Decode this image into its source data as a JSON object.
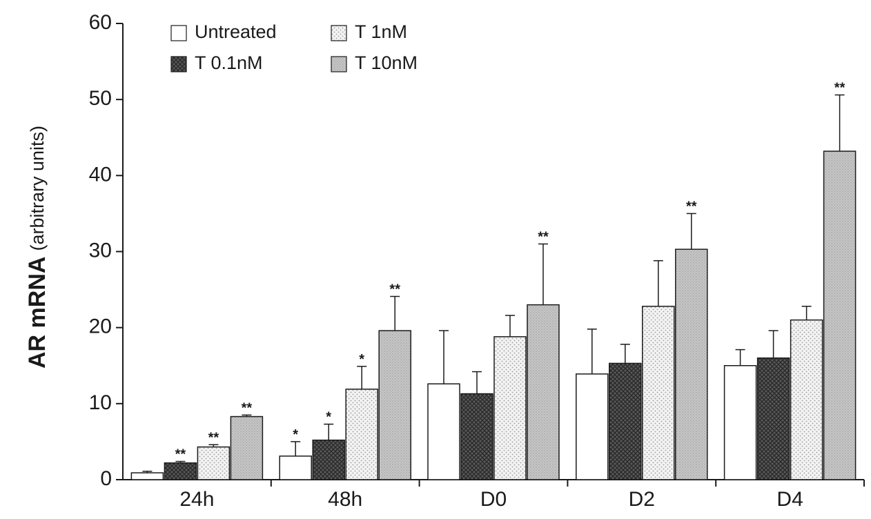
{
  "chart_data": {
    "type": "bar",
    "ylabel_main": "AR mRNA",
    "ylabel_unit": "(arbitrary units)",
    "xlabel": "",
    "ylim": [
      0,
      60
    ],
    "yticks": [
      0,
      10,
      20,
      30,
      40,
      50,
      60
    ],
    "categories": [
      "24h",
      "48h",
      "D0",
      "D2",
      "D4"
    ],
    "legend_position": "top-left",
    "grid": false,
    "series": [
      {
        "name": "Untreated",
        "fill": "white",
        "values": [
          0.9,
          3.1,
          12.6,
          13.9,
          15.0
        ],
        "errors": [
          0.2,
          1.9,
          7.0,
          5.9,
          2.1
        ],
        "significance": [
          "",
          "*",
          "",
          "",
          ""
        ]
      },
      {
        "name": "T 0.1nM",
        "fill": "dark-crosshatch",
        "values": [
          2.2,
          5.2,
          11.3,
          15.3,
          16.0
        ],
        "errors": [
          0.2,
          2.1,
          2.9,
          2.5,
          3.6
        ],
        "significance": [
          "**",
          "*",
          "",
          "",
          ""
        ]
      },
      {
        "name": "T 1nM",
        "fill": "light-dotted",
        "values": [
          4.3,
          11.9,
          18.8,
          22.8,
          21.0
        ],
        "errors": [
          0.3,
          3.0,
          2.8,
          6.0,
          1.8
        ],
        "significance": [
          "**",
          "*",
          "",
          "",
          ""
        ]
      },
      {
        "name": "T 10nM",
        "fill": "gray-dotted",
        "values": [
          8.3,
          19.6,
          23.0,
          30.3,
          43.2
        ],
        "errors": [
          0.2,
          4.5,
          8.0,
          4.7,
          7.4
        ],
        "significance": [
          "**",
          "**",
          "**",
          "**",
          "**"
        ]
      }
    ]
  },
  "colors": {
    "axis": "#1a1a1a",
    "bar_stroke": "#1a1a1a",
    "untreated": "#ffffff",
    "dark_crosshatch_base": "#5a5a5a",
    "light_dotted_base": "#f2f2f2",
    "gray_dotted_base": "#c8c8c8"
  }
}
